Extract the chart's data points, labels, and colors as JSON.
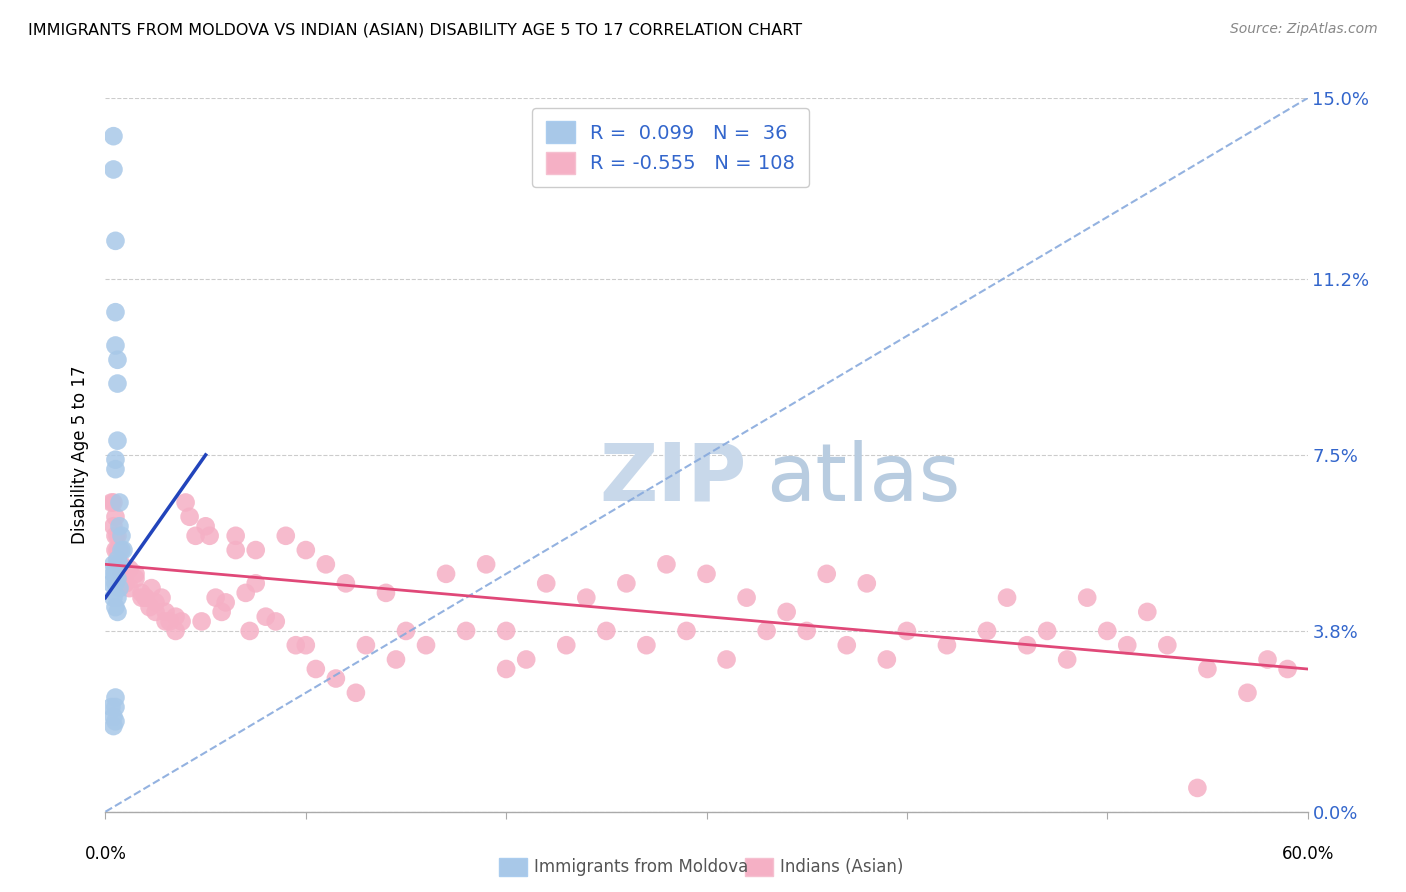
{
  "title": "IMMIGRANTS FROM MOLDOVA VS INDIAN (ASIAN) DISABILITY AGE 5 TO 17 CORRELATION CHART",
  "source": "Source: ZipAtlas.com",
  "ylabel": "Disability Age 5 to 17",
  "ytick_values": [
    0.0,
    3.8,
    7.5,
    11.2,
    15.0
  ],
  "xlim": [
    0.0,
    60.0
  ],
  "ylim": [
    0.0,
    15.0
  ],
  "moldova_color": "#a8c8e8",
  "india_color": "#f5b0c5",
  "moldova_line_color": "#2244bb",
  "india_line_color": "#e04878",
  "moldova_dash_color": "#88aadd",
  "background_color": "#ffffff",
  "watermark_color": "#c8d8ea",
  "moldova_R": 0.099,
  "moldova_N": 36,
  "india_R": -0.555,
  "india_N": 108,
  "moldova_x": [
    0.4,
    0.4,
    0.5,
    0.5,
    0.5,
    0.5,
    0.5,
    0.6,
    0.6,
    0.6,
    0.7,
    0.7,
    0.8,
    0.8,
    0.9,
    0.4,
    0.5,
    0.6,
    0.3,
    0.5,
    0.4,
    0.5,
    0.5,
    0.6,
    0.7,
    0.7,
    0.3,
    0.4,
    0.5,
    0.5,
    0.4,
    0.5,
    0.6,
    0.6,
    0.4,
    0.5
  ],
  "moldova_y": [
    14.2,
    13.5,
    12.0,
    10.5,
    9.8,
    7.4,
    7.2,
    9.5,
    9.0,
    7.8,
    6.5,
    6.0,
    5.5,
    5.8,
    5.5,
    5.2,
    5.0,
    5.3,
    4.8,
    5.1,
    5.0,
    4.8,
    5.0,
    4.9,
    5.2,
    4.7,
    2.2,
    1.8,
    1.9,
    2.4,
    4.5,
    4.3,
    4.5,
    4.2,
    2.0,
    2.2
  ],
  "india_x": [
    0.4,
    0.5,
    0.6,
    0.7,
    0.8,
    0.9,
    1.0,
    1.2,
    1.5,
    1.8,
    2.0,
    2.3,
    2.5,
    2.8,
    3.0,
    3.5,
    3.8,
    4.0,
    4.5,
    5.0,
    5.5,
    6.0,
    6.5,
    7.0,
    7.5,
    8.0,
    9.0,
    10.0,
    11.0,
    12.0,
    13.0,
    14.0,
    15.0,
    16.0,
    17.0,
    18.0,
    19.0,
    20.0,
    21.0,
    22.0,
    23.0,
    24.0,
    25.0,
    26.0,
    27.0,
    28.0,
    29.0,
    30.0,
    31.0,
    32.0,
    33.0,
    34.0,
    35.0,
    36.0,
    37.0,
    38.0,
    39.0,
    40.0,
    42.0,
    44.0,
    45.0,
    46.0,
    47.0,
    48.0,
    49.0,
    50.0,
    51.0,
    52.0,
    53.0,
    55.0,
    57.0,
    58.0,
    59.0,
    0.5,
    0.6,
    0.8,
    1.0,
    1.5,
    2.0,
    2.5,
    3.0,
    3.5,
    4.2,
    5.2,
    5.8,
    6.5,
    7.5,
    8.5,
    9.5,
    10.5,
    11.5,
    12.5,
    0.3,
    0.4,
    0.5,
    0.6,
    0.7,
    0.8,
    1.2,
    1.8,
    2.2,
    3.2,
    4.8,
    7.2,
    10.0,
    14.5,
    20.0,
    54.5
  ],
  "india_y": [
    6.5,
    6.2,
    5.8,
    5.5,
    5.2,
    5.0,
    4.8,
    5.1,
    4.9,
    4.6,
    4.5,
    4.7,
    4.4,
    4.5,
    4.2,
    4.1,
    4.0,
    6.5,
    5.8,
    6.0,
    4.5,
    4.4,
    5.8,
    4.6,
    5.5,
    4.1,
    5.8,
    5.5,
    5.2,
    4.8,
    3.5,
    4.6,
    3.8,
    3.5,
    5.0,
    3.8,
    5.2,
    3.8,
    3.2,
    4.8,
    3.5,
    4.5,
    3.8,
    4.8,
    3.5,
    5.2,
    3.8,
    5.0,
    3.2,
    4.5,
    3.8,
    4.2,
    3.8,
    5.0,
    3.5,
    4.8,
    3.2,
    3.8,
    3.5,
    3.8,
    4.5,
    3.5,
    3.8,
    3.2,
    4.5,
    3.8,
    3.5,
    4.2,
    3.5,
    3.0,
    2.5,
    3.2,
    3.0,
    5.5,
    5.3,
    5.0,
    4.8,
    5.0,
    4.5,
    4.2,
    4.0,
    3.8,
    6.2,
    5.8,
    4.2,
    5.5,
    4.8,
    4.0,
    3.5,
    3.0,
    2.8,
    2.5,
    6.5,
    6.0,
    5.8,
    5.5,
    5.2,
    5.0,
    4.7,
    4.5,
    4.3,
    4.0,
    4.0,
    3.8,
    3.5,
    3.2,
    3.0,
    0.5
  ],
  "dashed_line_x0": 0.0,
  "dashed_line_y0": 0.0,
  "dashed_line_x1": 60.0,
  "dashed_line_y1": 15.0,
  "solid_blue_x0": 0.0,
  "solid_blue_y0": 4.5,
  "solid_blue_x1": 5.0,
  "solid_blue_y1": 7.5,
  "pink_line_x0": 0.0,
  "pink_line_y0": 5.2,
  "pink_line_x1": 60.0,
  "pink_line_y1": 3.0
}
